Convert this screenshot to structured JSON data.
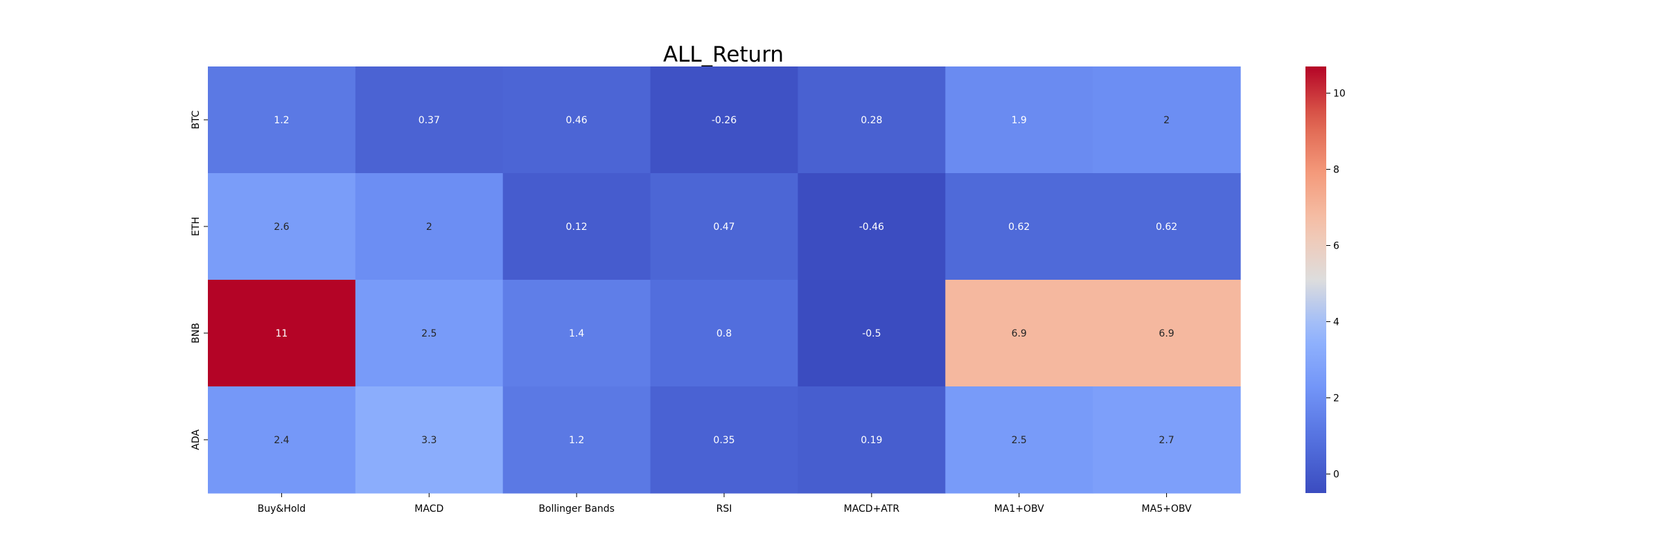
{
  "chart_data": {
    "type": "heatmap",
    "title": "ALL_Return",
    "xlabel": "",
    "ylabel": "",
    "x_categories": [
      "Buy&Hold",
      "MACD",
      "Bollinger Bands",
      "RSI",
      "MACD+ATR",
      "MA1+OBV",
      "MA5+OBV"
    ],
    "y_categories": [
      "BTC",
      "ETH",
      "BNB",
      "ADA"
    ],
    "values": [
      [
        1.2,
        0.37,
        0.46,
        -0.26,
        0.28,
        1.9,
        2.0
      ],
      [
        2.6,
        2.0,
        0.12,
        0.47,
        -0.46,
        0.62,
        0.62
      ],
      [
        10.7,
        2.5,
        1.4,
        0.8,
        -0.5,
        6.9,
        6.9
      ],
      [
        2.4,
        3.3,
        1.2,
        0.35,
        0.19,
        2.5,
        2.7
      ]
    ],
    "annotations": [
      [
        "1.2",
        "0.37",
        "0.46",
        "-0.26",
        "0.28",
        "1.9",
        "2"
      ],
      [
        "2.6",
        "2",
        "0.12",
        "0.47",
        "-0.46",
        "0.62",
        "0.62"
      ],
      [
        "11",
        "2.5",
        "1.4",
        "0.8",
        "-0.5",
        "6.9",
        "6.9"
      ],
      [
        "2.4",
        "3.3",
        "1.2",
        "0.35",
        "0.19",
        "2.5",
        "2.7"
      ]
    ],
    "colormap": "coolwarm",
    "colorbar": {
      "range": [
        -0.5,
        10.7
      ],
      "ticks": [
        0,
        2,
        4,
        6,
        8,
        10
      ],
      "tick_labels": [
        "0",
        "2",
        "4",
        "6",
        "8",
        "10"
      ]
    },
    "grid": false,
    "legend": "colorbar-right"
  }
}
